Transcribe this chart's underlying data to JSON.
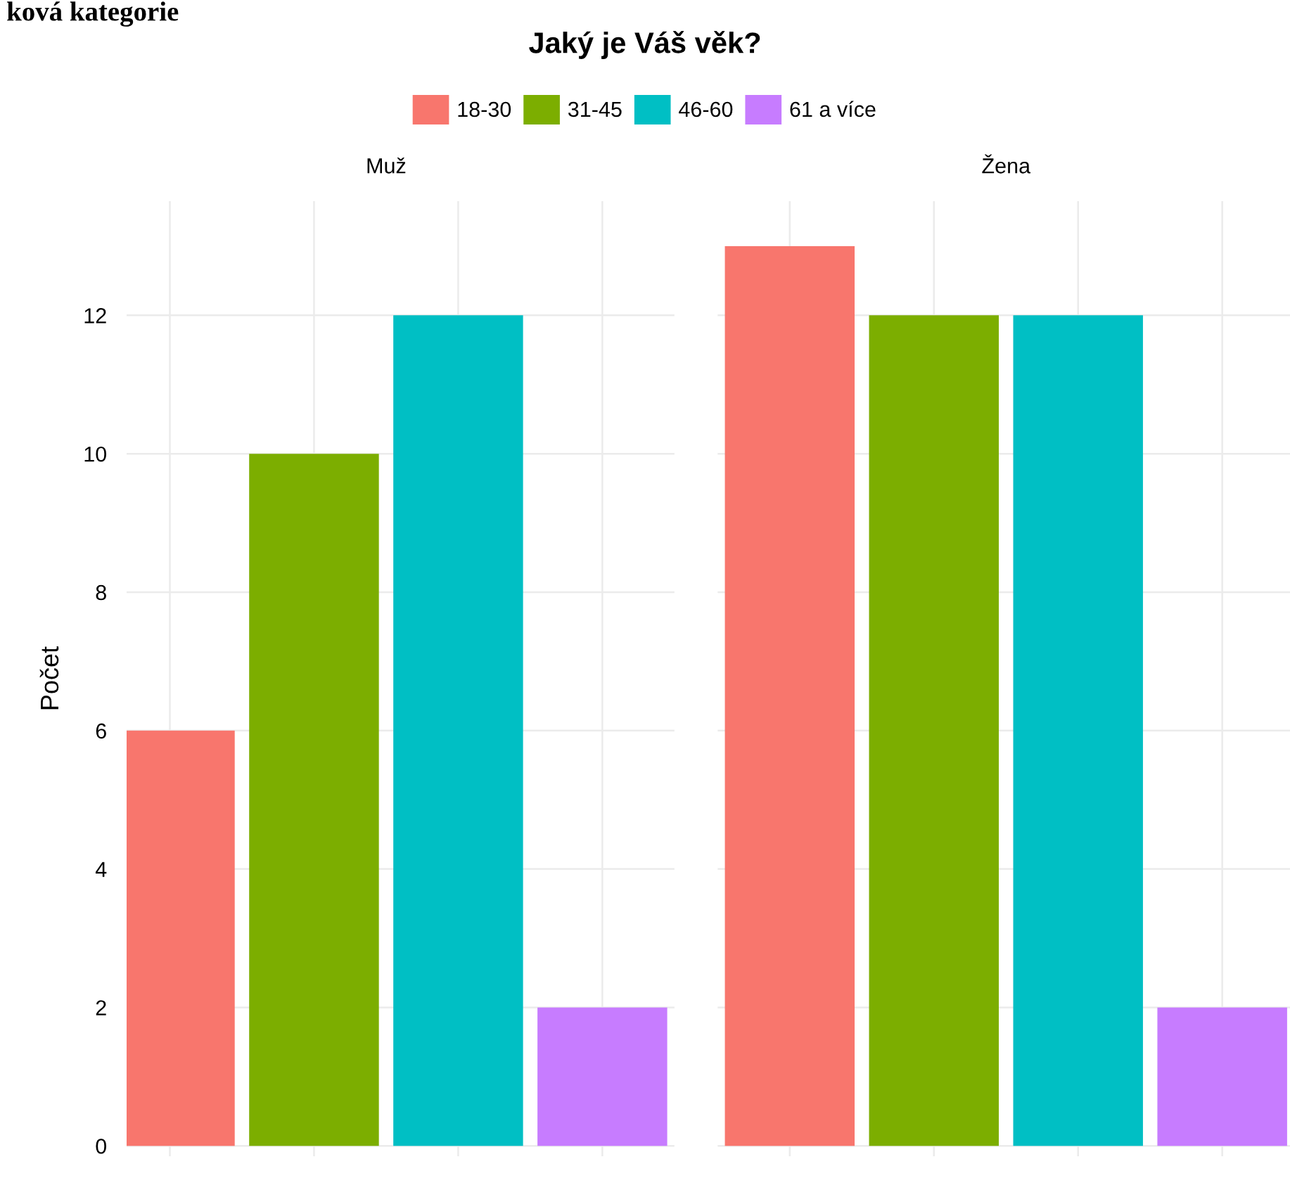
{
  "chart_data": {
    "type": "bar",
    "title": "Jaký je Váš věk?",
    "annotations": [
      "ková kategorie"
    ],
    "ylabel": "Počet",
    "categories": [
      "Muž",
      "Žena"
    ],
    "series": [
      {
        "name": "18-30",
        "color": "#f8766d",
        "values": [
          6,
          13
        ]
      },
      {
        "name": "31-45",
        "color": "#7cae00",
        "values": [
          10,
          12
        ]
      },
      {
        "name": "46-60",
        "color": "#00bfc4",
        "values": [
          12,
          12
        ]
      },
      {
        "name": "61 a více",
        "color": "#c77cff",
        "values": [
          2,
          2
        ]
      }
    ],
    "ylim": [
      -0.15,
      13.65
    ],
    "yticks": [
      0,
      2,
      4,
      6,
      8,
      10,
      12
    ],
    "grid": true,
    "legend": "top"
  }
}
